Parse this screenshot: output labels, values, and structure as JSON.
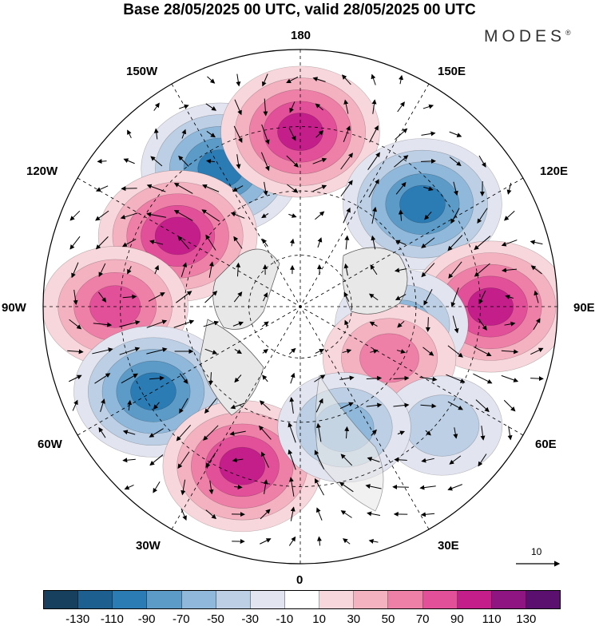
{
  "title": "Base 28/05/2025 00 UTC, valid 28/05/2025 00 UTC",
  "brand": "MODES",
  "brand_mark": "®",
  "longitude_labels": {
    "top": "180",
    "bottom": "0",
    "left": "90W",
    "right": "90E",
    "w150": "150W",
    "e150": "150E",
    "w120": "120W",
    "e120": "120E",
    "w60": "60W",
    "e60": "60E",
    "w30": "30W",
    "e30": "30E"
  },
  "reference_vector": {
    "value": "10"
  },
  "colorbar": {
    "colors": [
      "#17405f",
      "#1d5f8f",
      "#2b7bb4",
      "#5c9bc8",
      "#8fb8da",
      "#bccfe4",
      "#e2e4f0",
      "#ffffff",
      "#f8d7dc",
      "#f4b2c1",
      "#ee7fa7",
      "#e2509a",
      "#c41e8b",
      "#8f1583",
      "#5b0f6e"
    ],
    "ticks": [
      "-130",
      "-110",
      "-90",
      "-70",
      "-50",
      "-30",
      "-10",
      "10",
      "30",
      "50",
      "70",
      "90",
      "110",
      "130"
    ]
  },
  "anomaly_centers": [
    {
      "sign": "negative",
      "value": -90,
      "sector": "150W"
    },
    {
      "sign": "positive",
      "value": 90,
      "sector": "180"
    },
    {
      "sign": "negative",
      "value": -90,
      "sector": "130E"
    },
    {
      "sign": "positive",
      "value": 90,
      "sector": "120W"
    },
    {
      "sign": "positive",
      "value": 70,
      "sector": "90W"
    },
    {
      "sign": "positive",
      "value": 90,
      "sector": "90E"
    },
    {
      "sign": "negative",
      "value": -50,
      "sector": "80E"
    },
    {
      "sign": "positive",
      "value": 50,
      "sector": "60E"
    },
    {
      "sign": "negative",
      "value": -30,
      "sector": "50E"
    },
    {
      "sign": "negative",
      "value": -90,
      "sector": "60W"
    },
    {
      "sign": "positive",
      "value": 90,
      "sector": "20W"
    },
    {
      "sign": "negative",
      "value": -50,
      "sector": "20E"
    }
  ]
}
